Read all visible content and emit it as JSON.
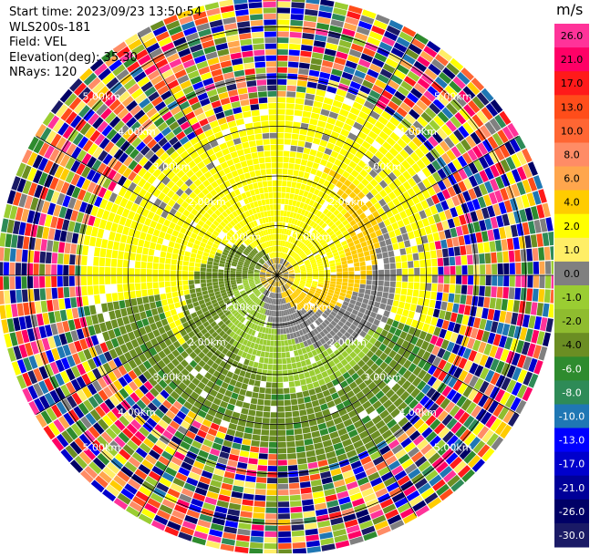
{
  "header": {
    "start_time": "Start time: 2023/09/23 13:50:54",
    "station": "WLS200s-181",
    "field": "Field: VEL",
    "elevation": "Elevation(deg): 35.30",
    "nrays": "NRays: 120"
  },
  "colorbar": {
    "unit": "m/s",
    "ticks": [
      "26.0",
      "21.0",
      "17.0",
      "13.0",
      "10.0",
      "8.0",
      "6.0",
      "4.0",
      "2.0",
      "1.0",
      "0.0",
      "-1.0",
      "-2.0",
      "-4.0",
      "-6.0",
      "-8.0",
      "-10.0",
      "-13.0",
      "-17.0",
      "-21.0",
      "-26.0",
      "-30.0"
    ],
    "colors": [
      "#ff3399",
      "#ff0066",
      "#ff1a1a",
      "#ff4d1a",
      "#ff6633",
      "#ff8c66",
      "#ffa64d",
      "#ffcc00",
      "#ffff00",
      "#ffee66",
      "#808080",
      "#9acd32",
      "#8fbc2f",
      "#6b8e23",
      "#2e8b2e",
      "#2e8b57",
      "#1f77b4",
      "#0000ff",
      "#0000cc",
      "#000099",
      "#000066",
      "#1a1a66"
    ]
  },
  "chart_data": {
    "type": "heatmap",
    "title": "Start time: 2023/09/23 13:50:54",
    "field": "VEL",
    "units": "m/s",
    "nrays": 120,
    "elevation_deg": 35.3,
    "range_ring_labels_km": [
      "1.00km",
      "2.00km",
      "3.00km",
      "4.00km",
      "5.00km"
    ],
    "range_rings_km": [
      1,
      2,
      3,
      4,
      5
    ],
    "max_range_km": 5.6,
    "spoke_angles_deg": [
      0,
      30,
      60,
      90,
      120,
      150,
      180,
      210,
      240,
      270,
      300,
      330
    ],
    "value_range": [
      -30,
      26
    ],
    "pattern": "near-range swirl of positive (yellow) velocities in the north and negative (olive/green) velocities in the south with noisy multicolor returns beyond ~3.5 km"
  }
}
